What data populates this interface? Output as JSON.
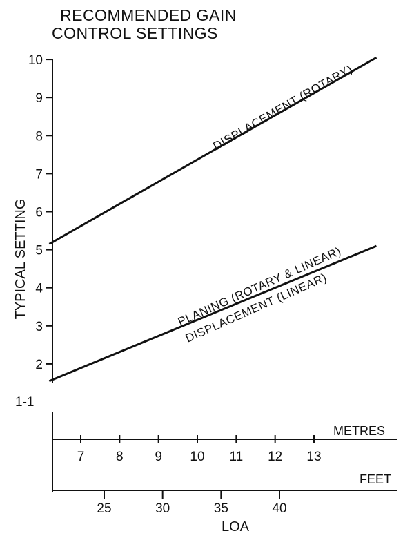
{
  "chart_data": {
    "type": "line",
    "title_lines": [
      "RECOMMENDED  GAIN",
      "CONTROL SETTINGS"
    ],
    "ylabel": "TYPICAL SETTING",
    "xlabel": "LOA",
    "ylim": [
      1,
      10
    ],
    "yticks": [
      "1-1",
      "2",
      "3",
      "4",
      "5",
      "6",
      "7",
      "8",
      "9",
      "10"
    ],
    "x_units": {
      "metres": "METRES",
      "feet": "FEET"
    },
    "x_ticks_metres": [
      "7",
      "8",
      "9",
      "10",
      "11",
      "12",
      "13"
    ],
    "x_ticks_feet": [
      "25",
      "30",
      "35",
      "40"
    ],
    "series": [
      {
        "name": "DISPLACEMENT (ROTARY)",
        "x_feet": [
          20.3,
          48.3
        ],
        "values": [
          5.15,
          10.05
        ]
      },
      {
        "name": "PLANING (ROTARY & LINEAR)",
        "name2": "DISPLACEMENT (LINEAR)",
        "x_feet": [
          20.3,
          48.3
        ],
        "values": [
          1.55,
          5.1
        ]
      }
    ],
    "grid": false,
    "line_color": "#111111"
  }
}
